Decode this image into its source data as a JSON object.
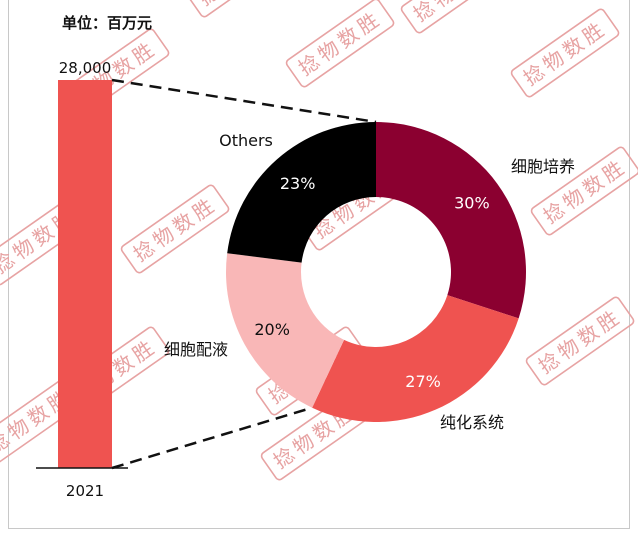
{
  "unit_label": "单位：百万元",
  "watermark": {
    "text": "捻物数胜",
    "color": "#e7a3a3"
  },
  "colors": {
    "bar": "#ef5350",
    "connector": "#111111",
    "baseline": "#111111",
    "label_light": "#ffffff",
    "label_dark": "#111111"
  },
  "chart_data": [
    {
      "type": "bar",
      "categories": [
        "2021"
      ],
      "values": [
        28000
      ],
      "value_labels": [
        "28,000"
      ],
      "ylabel": "",
      "unit": "百万元"
    },
    {
      "type": "pie",
      "style": "donut",
      "slices": [
        {
          "name": "细胞培养",
          "value": 30,
          "label": "30%",
          "color": "#8b0030",
          "label_color": "#ffffff"
        },
        {
          "name": "纯化系统",
          "value": 27,
          "label": "27%",
          "color": "#ef5350",
          "label_color": "#ffffff"
        },
        {
          "name": "细胞配液",
          "value": 20,
          "label": "20%",
          "color": "#f9b7b7",
          "label_color": "#111111"
        },
        {
          "name": "Others",
          "value": 23,
          "label": "23%",
          "color": "#000000",
          "label_color": "#ffffff"
        }
      ]
    }
  ]
}
